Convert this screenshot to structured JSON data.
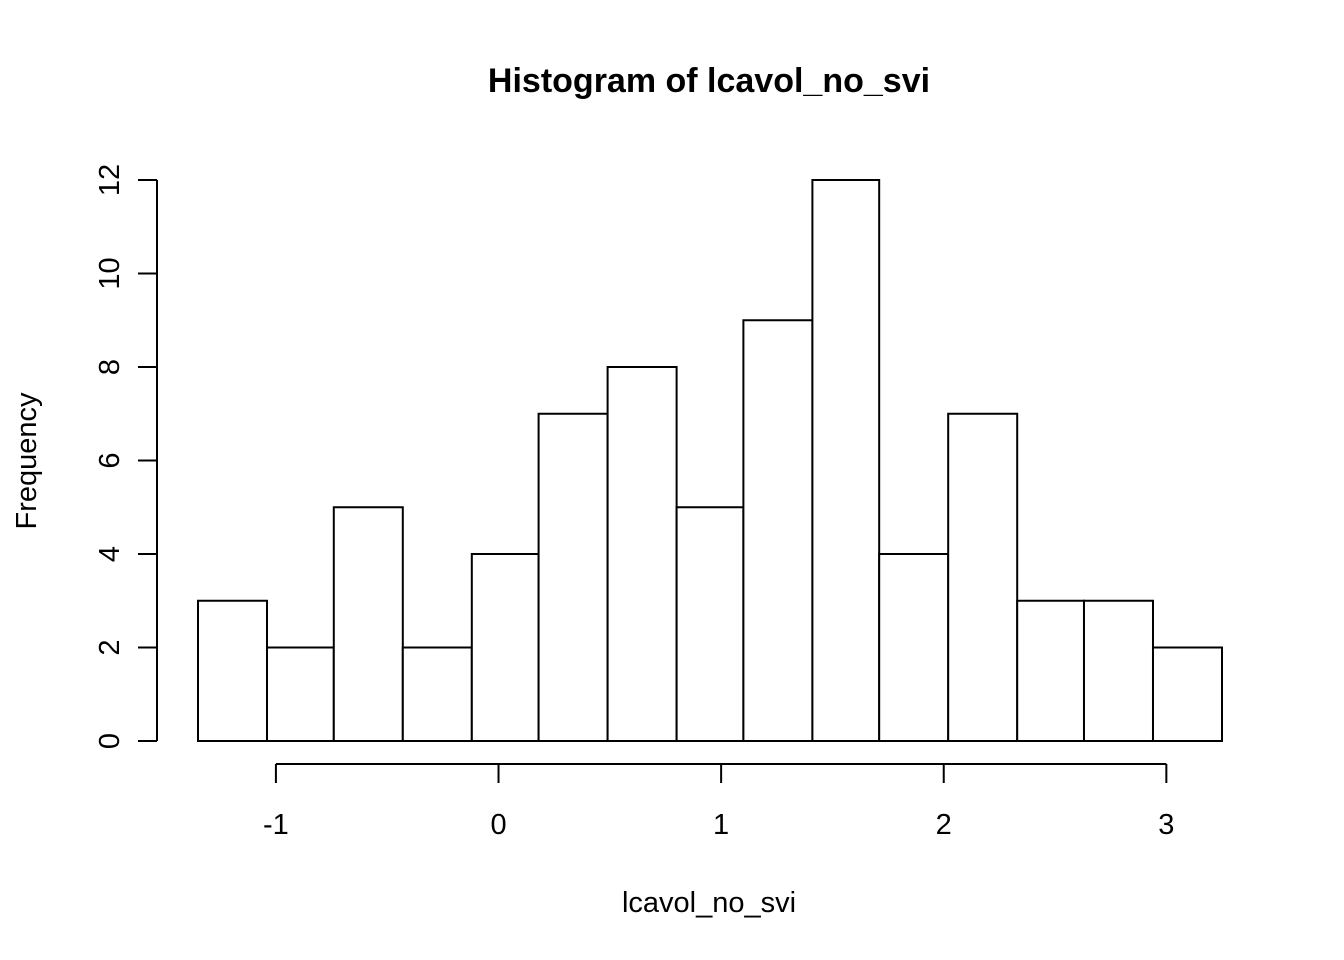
{
  "chart_data": {
    "type": "bar",
    "title": "Histogram of lcavol_no_svi",
    "xlabel": "lcavol_no_svi",
    "ylabel": "Frequency",
    "bin_edges": [
      -1.35,
      -1.04,
      -0.74,
      -0.43,
      -0.12,
      0.18,
      0.49,
      0.8,
      1.1,
      1.41,
      1.71,
      2.02,
      2.33,
      2.63,
      2.94,
      3.25
    ],
    "values": [
      3,
      2,
      5,
      2,
      4,
      7,
      8,
      5,
      9,
      12,
      4,
      7,
      3,
      3,
      2
    ],
    "xlim": [
      -1.35,
      3.25
    ],
    "ylim": [
      0,
      12
    ],
    "x_ticks": [
      -1,
      0,
      1,
      2,
      3
    ],
    "x_tick_labels": [
      "-1",
      "0",
      "1",
      "2",
      "3"
    ],
    "y_ticks": [
      0,
      2,
      4,
      6,
      8,
      10,
      12
    ],
    "y_tick_labels": [
      "0",
      "2",
      "4",
      "6",
      "8",
      "10",
      "12"
    ],
    "grid": false,
    "bar_fill": "#ffffff",
    "bar_stroke": "#000000"
  }
}
